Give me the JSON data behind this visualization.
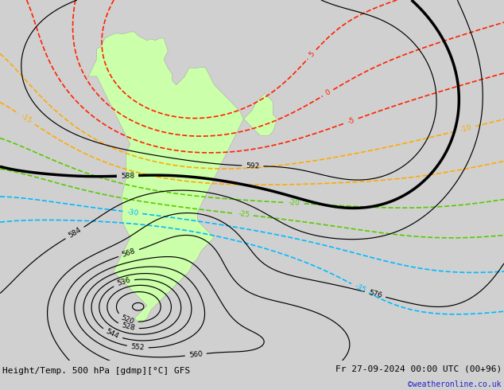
{
  "title_left": "Height/Temp. 500 hPa [gdmp][°C] GFS",
  "title_right": "Fr 27-09-2024 00:00 UTC (00+96)",
  "credit": "©weatheronline.co.uk",
  "fig_width": 6.34,
  "fig_height": 4.9,
  "dpi": 100,
  "ocean_color": "#e0e0e0",
  "land_color": "#ccffaa",
  "border_color": "#aaaaaa",
  "geo_levels": [
    512,
    520,
    528,
    536,
    544,
    552,
    560,
    568,
    576,
    584,
    588,
    592
  ],
  "geo_thick_level": 588,
  "geo_color": "#000000",
  "geo_thin_lw": 0.85,
  "geo_thick_lw": 2.5,
  "temp_colors": {
    "-35": "#00bbff",
    "-30": "#00bbff",
    "-25": "#55cc00",
    "-20": "#55cc00",
    "-15": "#ffaa00",
    "-10": "#ffaa00",
    "-5": "#ff2200",
    "0": "#ff2200",
    "5": "#ff2200"
  },
  "label_fontsize": 6.5,
  "title_fontsize": 8,
  "credit_fontsize": 7,
  "lon_min": -100,
  "lon_max": 20,
  "lat_min": -65,
  "lat_max": 20
}
